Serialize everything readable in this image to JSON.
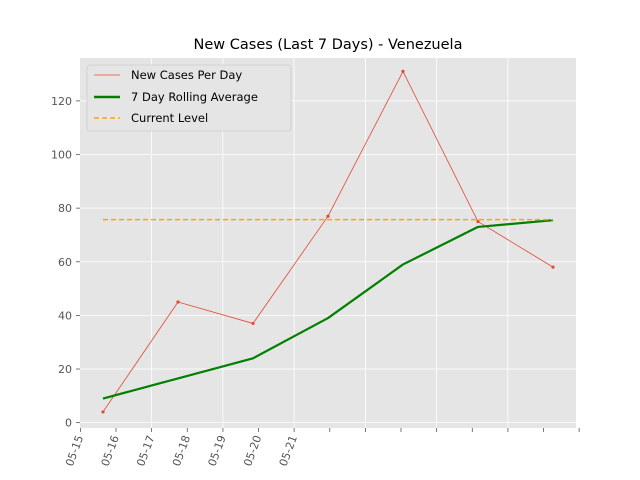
{
  "chart_data": {
    "type": "line",
    "title": "New Cases (Last 7 Days) - Venezuela",
    "xlabel": "",
    "ylabel": "",
    "x": [
      "05-15",
      "05-16",
      "05-17",
      "05-18",
      "05-19",
      "05-20",
      "05-21"
    ],
    "x_tick_labels": [
      "05-15",
      "05-16",
      "05-17",
      "05-18",
      "05-19",
      "05-20",
      "05-21"
    ],
    "ylim": [
      -2,
      136
    ],
    "y_ticks": [
      0,
      20,
      40,
      60,
      80,
      100,
      120
    ],
    "grid": true,
    "legend_position": "top-left",
    "series": [
      {
        "name": "New Cases Per Day",
        "style": "thin-line-markers",
        "color": "#E24A33",
        "values": [
          4,
          45,
          37,
          77,
          131,
          75,
          58
        ]
      },
      {
        "name": "7 Day Rolling Average",
        "style": "thick-line",
        "color": "#008000",
        "values": [
          9,
          16.5,
          24,
          39,
          59,
          73,
          75.5
        ]
      },
      {
        "name": "Current Level",
        "style": "dashed",
        "color": "#FFA500",
        "values": [
          75.7,
          75.7,
          75.7,
          75.7,
          75.7,
          75.7,
          75.7
        ]
      }
    ]
  }
}
